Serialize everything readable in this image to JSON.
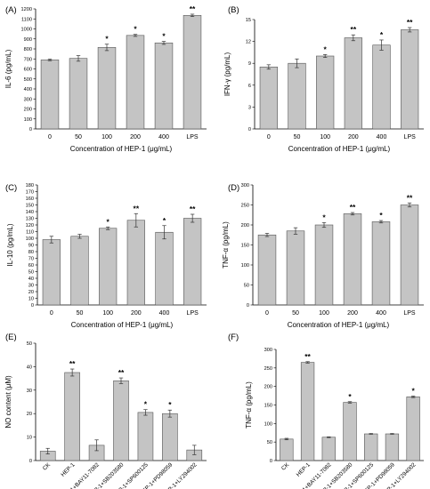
{
  "chart_data": [
    {
      "type": "bar",
      "panel_label": "(A)",
      "categories": [
        "0",
        "50",
        "100",
        "200",
        "400",
        "LPS"
      ],
      "values": [
        690,
        705,
        815,
        935,
        860,
        1135
      ],
      "errors": [
        8,
        28,
        32,
        10,
        15,
        12
      ],
      "significance": [
        "",
        "",
        "*",
        "*",
        "*",
        "**"
      ],
      "ylabel": "IL-6 (pg/mL)",
      "xlabel": "Concentration of HEP-1 (μg/mL)",
      "ylim": [
        0,
        1200
      ],
      "yticks": [
        0,
        100,
        200,
        300,
        400,
        500,
        600,
        700,
        800,
        900,
        1000,
        1100,
        1200
      ],
      "rotate_labels": false
    },
    {
      "type": "bar",
      "panel_label": "(B)",
      "categories": [
        "0",
        "50",
        "100",
        "200",
        "400",
        "LPS"
      ],
      "values": [
        8.5,
        9.0,
        10.0,
        12.5,
        11.5,
        13.6
      ],
      "errors": [
        0.3,
        0.6,
        0.2,
        0.4,
        0.7,
        0.3
      ],
      "significance": [
        "",
        "",
        "*",
        "**",
        "*",
        "**"
      ],
      "ylabel": "IFN-γ (pg/mL)",
      "xlabel": "Concentration of HEP-1 (μg/mL)",
      "ylim": [
        0,
        15
      ],
      "yticks": [
        0,
        3,
        6,
        9,
        12,
        15
      ],
      "rotate_labels": false
    },
    {
      "type": "bar",
      "panel_label": "(C)",
      "categories": [
        "0",
        "50",
        "100",
        "200",
        "400",
        "LPS"
      ],
      "values": [
        98,
        103,
        115,
        127,
        109,
        130
      ],
      "errors": [
        5,
        3,
        2,
        10,
        10,
        6
      ],
      "significance": [
        "",
        "",
        "*",
        "**",
        "*",
        "**"
      ],
      "ylabel": "IL-10 (pg/mL)",
      "xlabel": "Concentration of HEP-1 (μg/mL)",
      "ylim": [
        0,
        180
      ],
      "yticks": [
        0,
        10,
        20,
        30,
        40,
        50,
        60,
        70,
        80,
        90,
        100,
        110,
        120,
        130,
        140,
        150,
        160,
        170,
        180
      ],
      "rotate_labels": false
    },
    {
      "type": "bar",
      "panel_label": "(D)",
      "categories": [
        "0",
        "50",
        "100",
        "200",
        "400",
        "LPS"
      ],
      "values": [
        175,
        185,
        200,
        228,
        208,
        250
      ],
      "errors": [
        4,
        8,
        6,
        3,
        3,
        5
      ],
      "significance": [
        "",
        "",
        "*",
        "**",
        "*",
        "**"
      ],
      "ylabel": "TNF-α (pg/mL)",
      "xlabel": "Concentration of HEP-1 (μg/mL)",
      "ylim": [
        0,
        300
      ],
      "yticks": [
        0,
        50,
        100,
        150,
        200,
        250,
        300
      ],
      "rotate_labels": false
    },
    {
      "type": "bar",
      "panel_label": "(E)",
      "categories": [
        "CK",
        "HEP-1",
        "HEP-1+BAY11-7082",
        "HEP-1+SB203580",
        "HEP-1+SP600125",
        "HEP-1+PD98059",
        "HEP-1+LY294002"
      ],
      "values": [
        4,
        37.5,
        6.5,
        34,
        20.5,
        20,
        4.5
      ],
      "errors": [
        1.2,
        1.5,
        2.3,
        1.2,
        1.2,
        1.5,
        2
      ],
      "significance": [
        "",
        "**",
        "",
        "**",
        "*",
        "*",
        ""
      ],
      "ylabel": "NO content (μM)",
      "xlabel": "",
      "ylim": [
        0,
        50
      ],
      "yticks": [
        0,
        10,
        20,
        30,
        40,
        50
      ],
      "rotate_labels": true
    },
    {
      "type": "bar",
      "panel_label": "(F)",
      "categories": [
        "CK",
        "HEP-1",
        "HEP-1+BAY11-7082",
        "HEP-1+SB203580",
        "HEP-1+SP600125",
        "HEP-1+PD98059",
        "HEP-1+LY294002"
      ],
      "values": [
        58,
        265,
        63,
        157,
        72,
        72,
        172
      ],
      "errors": [
        2,
        2,
        1,
        2,
        1,
        1,
        2
      ],
      "significance": [
        "",
        "**",
        "",
        "*",
        "",
        "",
        "*"
      ],
      "ylabel": "TNF-α (pg/mL)",
      "xlabel": "",
      "ylim": [
        0,
        300
      ],
      "yticks": [
        0,
        50,
        100,
        150,
        200,
        250,
        300
      ],
      "rotate_labels": true
    }
  ]
}
